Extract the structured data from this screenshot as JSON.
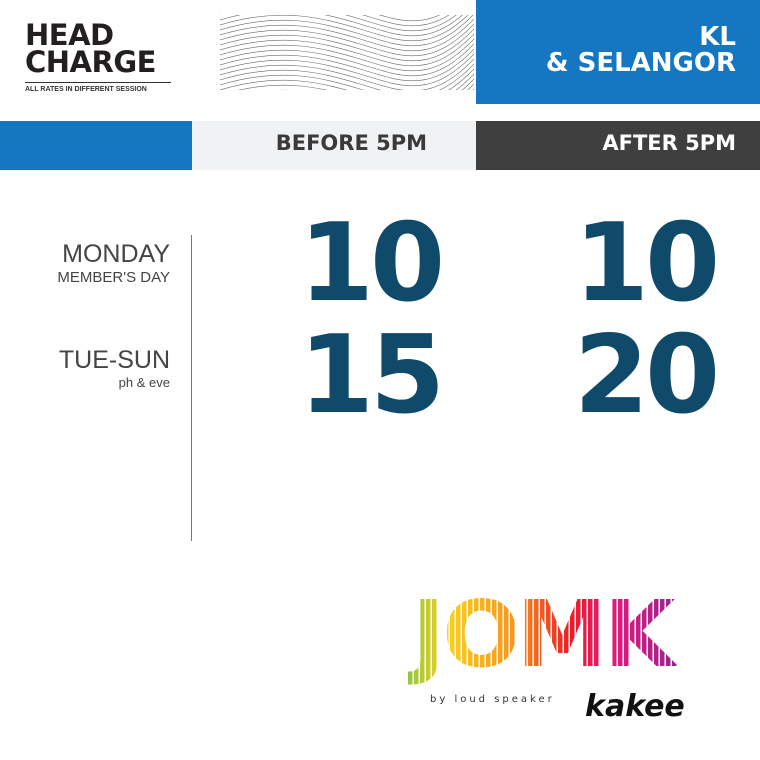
{
  "header": {
    "title_line1": "HEAD",
    "title_line2": "CHARGE",
    "subtitle": "ALL RATES IN DIFFERENT SESSION",
    "region_line1": "KL",
    "region_line2": "& SELANGOR"
  },
  "columns": {
    "before": "BEFORE 5PM",
    "after": "AFTER 5PM"
  },
  "rows": [
    {
      "day": "MONDAY",
      "note": "MEMBER'S DAY",
      "before": "10",
      "after": "10"
    },
    {
      "day": "TUE-SUN",
      "note": "ph & eve",
      "before": "15",
      "after": "20"
    }
  ],
  "logo": {
    "text": "JOMK",
    "script": "kakee",
    "tagline": "by loud speaker"
  },
  "colors": {
    "blue": "#1577c2",
    "dark": "#3f3f3f",
    "number": "#0f4a6b",
    "light": "#f1f2f4"
  }
}
